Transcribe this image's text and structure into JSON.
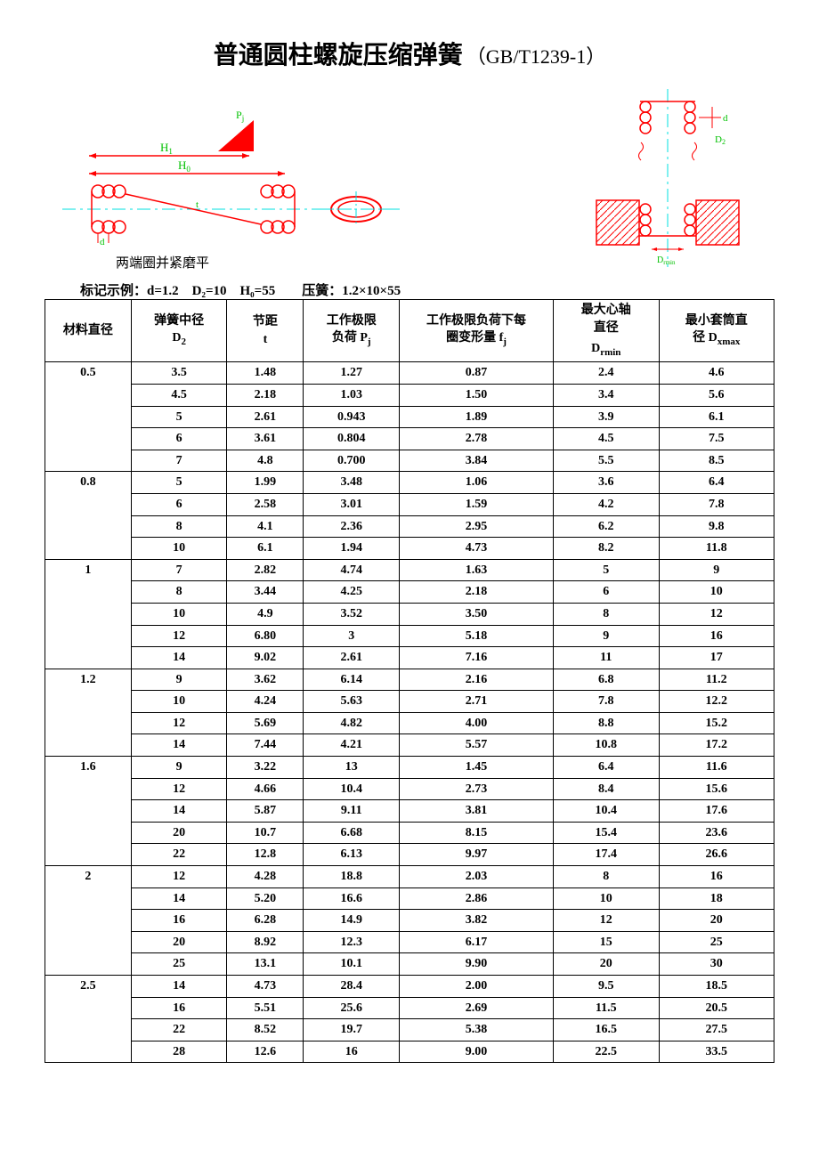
{
  "title": {
    "main": "普通圆柱螺旋压缩弹簧",
    "standard": "（GB/T1239-1）"
  },
  "diagram_caption": "两端圈并紧磨平",
  "marking_example": "标记示例：d=1.2　D₂=10　H₀=55　　压簧：1.2×10×55",
  "colors": {
    "diagram_red": "#ff0000",
    "diagram_cyan": "#00e0e0",
    "diagram_green": "#00c000",
    "diagram_hatch": "#ff0000",
    "background": "#ffffff",
    "border": "#000000"
  },
  "table": {
    "headers": {
      "d": "材料直径",
      "D2_line1": "弹簧中径",
      "D2_line2": "D",
      "D2_sub": "2",
      "t_line1": "节距",
      "t_line2": "t",
      "Pj_line1": "工作极限",
      "Pj_line2": "负荷 P",
      "Pj_sub": "j",
      "fj_line1": "工作极限负荷下每",
      "fj_line2": "圈变形量 f",
      "fj_sub": "j",
      "Drmin_line1": "最大心轴",
      "Drmin_line2": "直径",
      "Drmin_line3": "D",
      "Drmin_sub": "rmin",
      "Dxmax_line1": "最小套筒直",
      "Dxmax_line2": "径 D",
      "Dxmax_sub": "xmax"
    },
    "groups": [
      {
        "d": "0.5",
        "rows": [
          [
            "3.5",
            "1.48",
            "1.27",
            "0.87",
            "2.4",
            "4.6"
          ],
          [
            "4.5",
            "2.18",
            "1.03",
            "1.50",
            "3.4",
            "5.6"
          ],
          [
            "5",
            "2.61",
            "0.943",
            "1.89",
            "3.9",
            "6.1"
          ],
          [
            "6",
            "3.61",
            "0.804",
            "2.78",
            "4.5",
            "7.5"
          ],
          [
            "7",
            "4.8",
            "0.700",
            "3.84",
            "5.5",
            "8.5"
          ]
        ]
      },
      {
        "d": "0.8",
        "rows": [
          [
            "5",
            "1.99",
            "3.48",
            "1.06",
            "3.6",
            "6.4"
          ],
          [
            "6",
            "2.58",
            "3.01",
            "1.59",
            "4.2",
            "7.8"
          ],
          [
            "8",
            "4.1",
            "2.36",
            "2.95",
            "6.2",
            "9.8"
          ],
          [
            "10",
            "6.1",
            "1.94",
            "4.73",
            "8.2",
            "11.8"
          ]
        ]
      },
      {
        "d": "1",
        "rows": [
          [
            "7",
            "2.82",
            "4.74",
            "1.63",
            "5",
            "9"
          ],
          [
            "8",
            "3.44",
            "4.25",
            "2.18",
            "6",
            "10"
          ],
          [
            "10",
            "4.9",
            "3.52",
            "3.50",
            "8",
            "12"
          ],
          [
            "12",
            "6.80",
            "3",
            "5.18",
            "9",
            "16"
          ],
          [
            "14",
            "9.02",
            "2.61",
            "7.16",
            "11",
            "17"
          ]
        ]
      },
      {
        "d": "1.2",
        "rows": [
          [
            "9",
            "3.62",
            "6.14",
            "2.16",
            "6.8",
            "11.2"
          ],
          [
            "10",
            "4.24",
            "5.63",
            "2.71",
            "7.8",
            "12.2"
          ],
          [
            "12",
            "5.69",
            "4.82",
            "4.00",
            "8.8",
            "15.2"
          ],
          [
            "14",
            "7.44",
            "4.21",
            "5.57",
            "10.8",
            "17.2"
          ]
        ]
      },
      {
        "d": "1.6",
        "rows": [
          [
            "9",
            "3.22",
            "13",
            "1.45",
            "6.4",
            "11.6"
          ],
          [
            "12",
            "4.66",
            "10.4",
            "2.73",
            "8.4",
            "15.6"
          ],
          [
            "14",
            "5.87",
            "9.11",
            "3.81",
            "10.4",
            "17.6"
          ],
          [
            "20",
            "10.7",
            "6.68",
            "8.15",
            "15.4",
            "23.6"
          ],
          [
            "22",
            "12.8",
            "6.13",
            "9.97",
            "17.4",
            "26.6"
          ]
        ]
      },
      {
        "d": "2",
        "rows": [
          [
            "12",
            "4.28",
            "18.8",
            "2.03",
            "8",
            "16"
          ],
          [
            "14",
            "5.20",
            "16.6",
            "2.86",
            "10",
            "18"
          ],
          [
            "16",
            "6.28",
            "14.9",
            "3.82",
            "12",
            "20"
          ],
          [
            "20",
            "8.92",
            "12.3",
            "6.17",
            "15",
            "25"
          ],
          [
            "25",
            "13.1",
            "10.1",
            "9.90",
            "20",
            "30"
          ]
        ]
      },
      {
        "d": "2.5",
        "rows": [
          [
            "14",
            "4.73",
            "28.4",
            "2.00",
            "9.5",
            "18.5"
          ],
          [
            "16",
            "5.51",
            "25.6",
            "2.69",
            "11.5",
            "20.5"
          ],
          [
            "22",
            "8.52",
            "19.7",
            "5.38",
            "16.5",
            "27.5"
          ],
          [
            "28",
            "12.6",
            "16",
            "9.00",
            "22.5",
            "33.5"
          ]
        ]
      }
    ]
  }
}
